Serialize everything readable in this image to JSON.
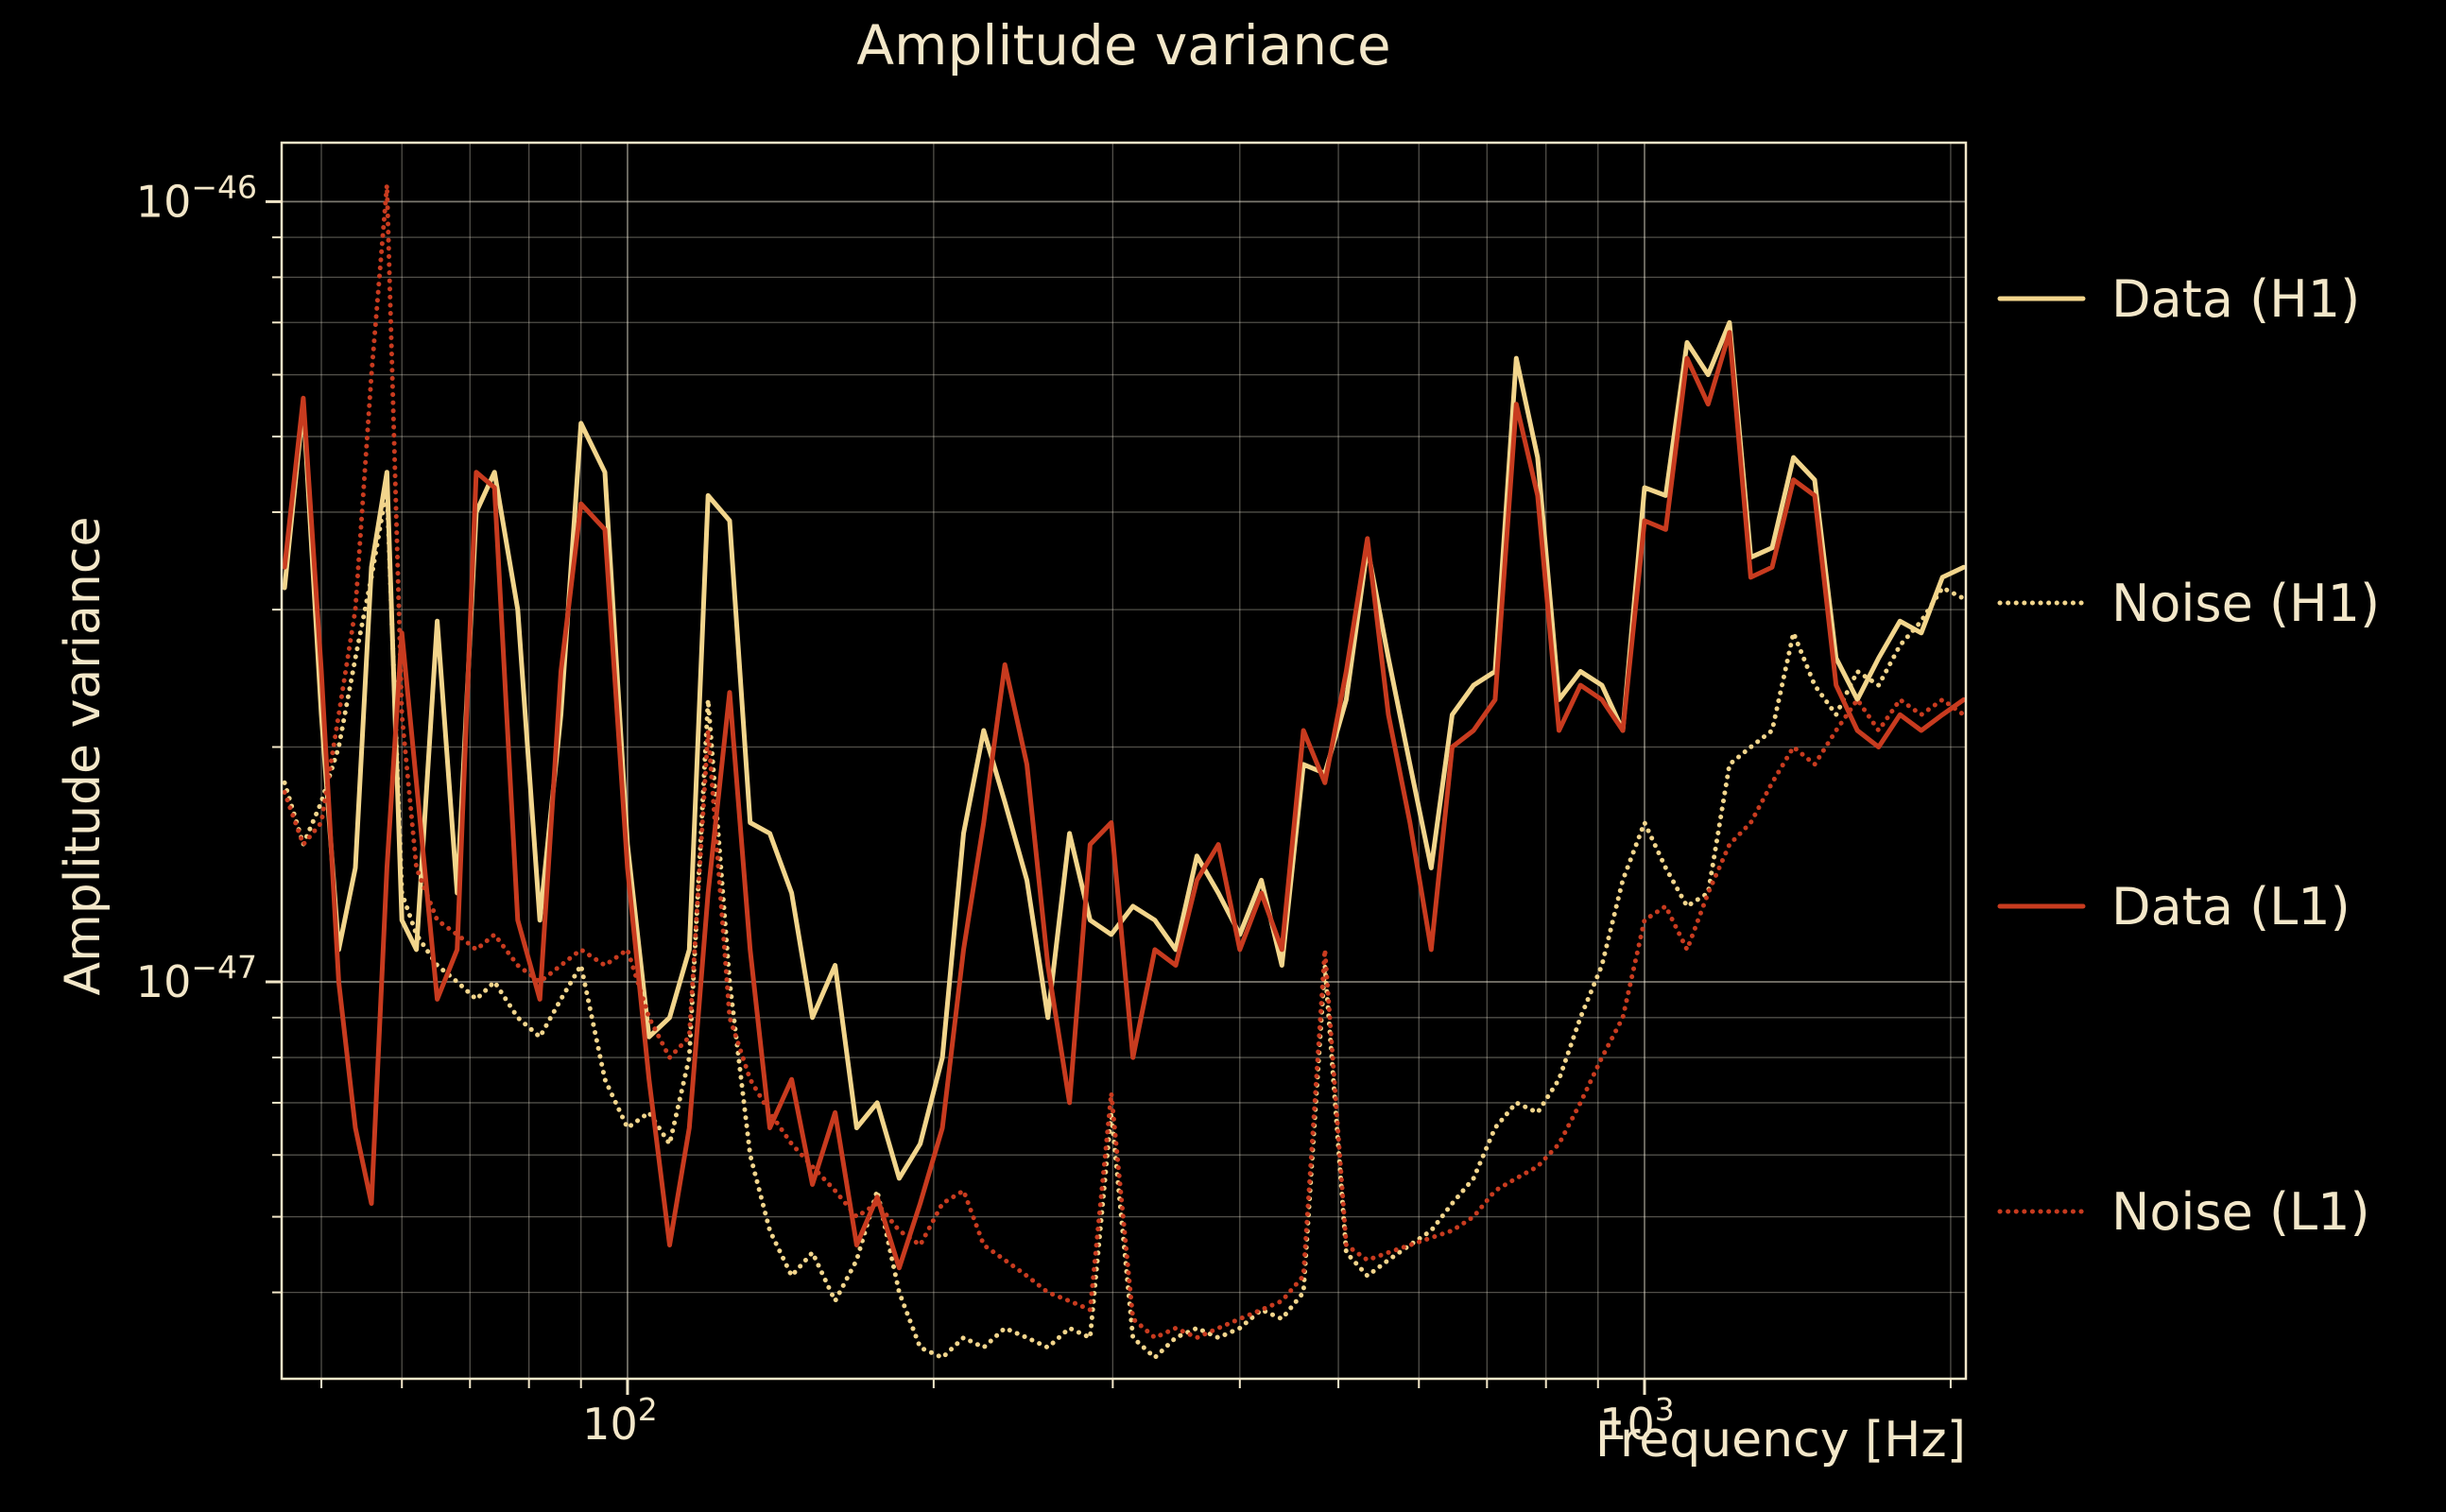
{
  "page": {
    "background": "#000000",
    "foreground": "#f3e7c9"
  },
  "chart_data": {
    "type": "line",
    "title": "Amplitude variance",
    "xlabel": "Frequency [Hz]",
    "ylabel": "Amplitude variance",
    "x_scale": "log",
    "y_scale": "log",
    "xlim": [
      45.7,
      2070
    ],
    "ylim": [
      3.1e-48,
      1.19e-46
    ],
    "grid": "both",
    "legend_position": "right-outside",
    "x_ticks": [
      {
        "value": 100,
        "label_base": "10",
        "label_exp": "2"
      },
      {
        "value": 1000,
        "label_base": "10",
        "label_exp": "3"
      }
    ],
    "y_ticks": [
      {
        "value": 1e-47,
        "label_base": "10",
        "label_exp": "−47"
      },
      {
        "value": 1e-46,
        "label_base": "10",
        "label_exp": "−46"
      }
    ],
    "y_unit": 1e-48,
    "x": [
      46,
      48,
      50,
      52,
      54,
      56,
      58,
      60,
      62,
      65,
      68,
      71,
      74,
      78,
      82,
      86,
      90,
      95,
      100,
      105,
      110,
      115,
      120,
      126,
      132,
      138,
      145,
      152,
      160,
      168,
      176,
      185,
      194,
      204,
      214,
      224,
      235,
      247,
      259,
      272,
      285,
      299,
      314,
      330,
      346,
      363,
      381,
      400,
      420,
      440,
      462,
      485,
      509,
      534,
      560,
      588,
      617,
      647,
      679,
      713,
      748,
      785,
      824,
      865,
      908,
      952,
      1000,
      1049,
      1101,
      1155,
      1212,
      1272,
      1335,
      1401,
      1470,
      1543,
      1619,
      1699,
      1783,
      1871,
      1963,
      2060
    ],
    "series": [
      {
        "name": "Data (H1)",
        "color": "#f2d58c",
        "style": "solid",
        "values": [
          32,
          55,
          22,
          11,
          14,
          34,
          45,
          12,
          11,
          29,
          13,
          40,
          45,
          30,
          12,
          22,
          52,
          45,
          15,
          8.5,
          9,
          11,
          42,
          39,
          16,
          15.5,
          13,
          9,
          10.5,
          6.5,
          7,
          5.6,
          6.2,
          8,
          15.5,
          21,
          17,
          13.5,
          9,
          15.5,
          12,
          11.5,
          12.5,
          12,
          11,
          14.5,
          13,
          11.5,
          13.5,
          10.5,
          19,
          18.5,
          23,
          36,
          26,
          19,
          14,
          22,
          24,
          25,
          63,
          47,
          23,
          25,
          24,
          21,
          43,
          42,
          66,
          60,
          70,
          35,
          36,
          47,
          44,
          26,
          23,
          26,
          29,
          28,
          33,
          34
        ]
      },
      {
        "name": "Noise (H1)",
        "color": "#f2d58c",
        "style": "dotted",
        "values": [
          18,
          15,
          17,
          20,
          26,
          33,
          43,
          13,
          11.5,
          10.5,
          10,
          9.5,
          10,
          9,
          8.5,
          9.5,
          10.5,
          7.5,
          6.5,
          6.8,
          6.2,
          8,
          23,
          10,
          6,
          4.8,
          4.2,
          4.5,
          3.9,
          4.4,
          5.4,
          4,
          3.4,
          3.3,
          3.5,
          3.4,
          3.6,
          3.5,
          3.4,
          3.6,
          3.5,
          6.8,
          3.5,
          3.3,
          3.5,
          3.6,
          3.5,
          3.6,
          3.8,
          3.7,
          4,
          10.5,
          4.5,
          4.2,
          4.4,
          4.6,
          4.8,
          5.2,
          5.6,
          6.5,
          7,
          6.8,
          7.5,
          9,
          10.5,
          13.5,
          16,
          14,
          12.5,
          13,
          19,
          20,
          21,
          28,
          24,
          22,
          25,
          24,
          27,
          29,
          32,
          31
        ]
      },
      {
        "name": "Data (L1)",
        "color": "#c83b1f",
        "style": "solid",
        "values": [
          34,
          56,
          25,
          10,
          6.5,
          5.2,
          14,
          28,
          18,
          9.5,
          11,
          45,
          43,
          12,
          9.5,
          25,
          41,
          38,
          14,
          7.5,
          4.6,
          6.5,
          13,
          23.5,
          11,
          6.5,
          7.5,
          5.5,
          6.8,
          4.6,
          5.3,
          4.3,
          5.2,
          6.5,
          11,
          16,
          25.5,
          19,
          10.5,
          7,
          15,
          16,
          8,
          11,
          10.5,
          13.5,
          15,
          11,
          13,
          11,
          21,
          18,
          25,
          37,
          22,
          16,
          11,
          20,
          21,
          23,
          55,
          42,
          21,
          24,
          23,
          21,
          39,
          38,
          63,
          55,
          68,
          33,
          34,
          44,
          42,
          24,
          21,
          20,
          22,
          21,
          22,
          23
        ]
      },
      {
        "name": "Noise (L1)",
        "color": "#c83b1f",
        "style": "dotted",
        "values": [
          17.5,
          15,
          16,
          22,
          30,
          60,
          105,
          22,
          14,
          12,
          11.5,
          11,
          11.5,
          10.5,
          10,
          10.5,
          11,
          10.5,
          11,
          9,
          8,
          8.5,
          21,
          9,
          7.5,
          6.8,
          6.2,
          5.8,
          5.4,
          5,
          5.2,
          4.8,
          4.6,
          5.2,
          5.4,
          4.6,
          4.4,
          4.2,
          4,
          3.9,
          3.8,
          7.2,
          3.7,
          3.5,
          3.6,
          3.5,
          3.6,
          3.7,
          3.8,
          3.9,
          4.2,
          11,
          4.6,
          4.4,
          4.5,
          4.6,
          4.7,
          4.8,
          5,
          5.4,
          5.6,
          5.8,
          6.2,
          7,
          8,
          9,
          12,
          12.5,
          11,
          13,
          15,
          16,
          18,
          20,
          19,
          21,
          23,
          21,
          23,
          22,
          23,
          22
        ]
      }
    ]
  }
}
